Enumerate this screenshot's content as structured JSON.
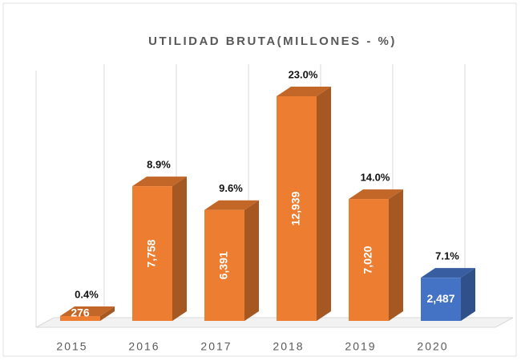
{
  "chart_data": {
    "type": "bar3d",
    "title": "UTILIDAD BRUTA(MILLONES - %)",
    "categories": [
      "2015",
      "2016",
      "2017",
      "2018",
      "2019",
      "2020"
    ],
    "values": [
      276,
      7758,
      6391,
      12939,
      7020,
      2487
    ],
    "value_labels": [
      "276",
      "7,758",
      "6,391",
      "12,939",
      "7,020",
      "2,487"
    ],
    "percentages": [
      0.4,
      8.9,
      9.6,
      23.0,
      14.0,
      7.1
    ],
    "percentage_labels": [
      "0.4%",
      "8.9%",
      "9.6%",
      "23.0%",
      "14.0%",
      "7.1%"
    ],
    "colors": [
      "#ed7d31",
      "#ed7d31",
      "#ed7d31",
      "#ed7d31",
      "#ed7d31",
      "#4472c4"
    ]
  }
}
